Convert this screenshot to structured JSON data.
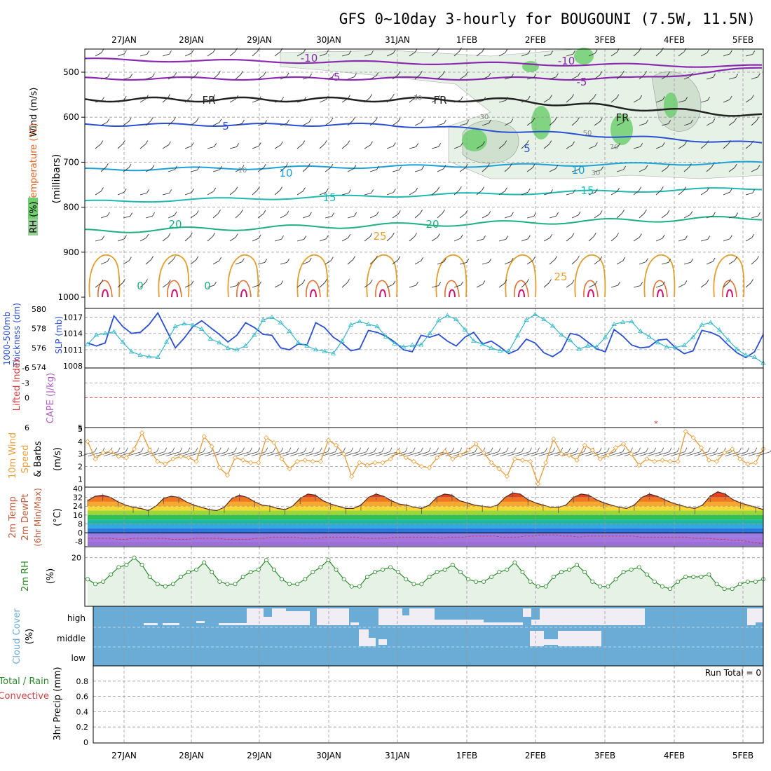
{
  "title": "GFS 0~10day 3-hourly for BOUGOUNI (7.5W, 11.5N)",
  "dates": [
    "27JAN",
    "28JAN",
    "29JAN",
    "30JAN",
    "31JAN",
    "1FEB",
    "2FEB",
    "3FEB",
    "4FEB",
    "5FEB"
  ],
  "colors": {
    "rh_green": "#6fcf6f",
    "rh_light": "#e6f2e6",
    "thickness": "#2a4fd0",
    "slp": "#36b8c8",
    "wind10": "#e8a040",
    "rh2m": "#2a8a2a",
    "cloud": "#6aacd6",
    "cape": "#b060c0",
    "li": "#d04040"
  },
  "chart_data": [
    {
      "type": "line",
      "name": "upper_air",
      "y_axis_label_parts": [
        "Wind (m/s)",
        "Temperature (°C)",
        "RH (%)",
        "(millibars)"
      ],
      "y_ticks": [
        500,
        600,
        700,
        800,
        900,
        1000
      ],
      "ylim": [
        1000,
        450
      ],
      "isotherm_labels": [
        "-10",
        "-5",
        "FR",
        "5",
        "10",
        "15",
        "20",
        "25",
        "0"
      ],
      "rh_labels": [
        "30",
        "50",
        "70",
        "10"
      ],
      "legend_title": "RH (%)"
    },
    {
      "type": "line",
      "name": "thickness_slp",
      "y_axis_label_parts": [
        "1000-500mb",
        "Thickness (dm)",
        "SLP (mb)"
      ],
      "left_ticks": [
        574,
        576,
        578,
        580
      ],
      "right_ticks": [
        1008,
        1011,
        1014,
        1017
      ],
      "left_ylim": [
        574,
        580
      ],
      "right_ylim": [
        1008,
        1018.5
      ],
      "thickness_dm": [
        576.5,
        576.2,
        576.5,
        579.3,
        578.2,
        577.5,
        577.6,
        578.4,
        579.6,
        577.8,
        576.0,
        577.0,
        578.2,
        578.8,
        578.1,
        577.4,
        576.6,
        577.3,
        578.6,
        578.1,
        577.4,
        577.3,
        576.0,
        575.8,
        576.4,
        576.3,
        578.6,
        578.1,
        577.1,
        576.5,
        575.7,
        575.9,
        577.8,
        577.6,
        577.2,
        576.6,
        575.8,
        575.6,
        577.3,
        577.1,
        577.4,
        576.7,
        576.2,
        577.1,
        577.6,
        576.4,
        576.7,
        576.1,
        575.4,
        575.8,
        576.9,
        576.5,
        575.5,
        575.1,
        575.7,
        577.5,
        577.3,
        576.6,
        575.9,
        575.6,
        577.9,
        577.2,
        576.3,
        576.0,
        576.1,
        576.8,
        576.9,
        576.0,
        575.4,
        575.7,
        577.8,
        577.6,
        577.2,
        576.3,
        575.5,
        575.0,
        575.6,
        577.4
      ],
      "slp_mb": [
        1012.0,
        1013.7,
        1014.0,
        1014.3,
        1012.4,
        1010.6,
        1010.0,
        1009.7,
        1009.6,
        1012.4,
        1015.3,
        1015.8,
        1015.5,
        1014.8,
        1013.0,
        1012.3,
        1011.3,
        1011.0,
        1011.7,
        1013.7,
        1016.5,
        1017.0,
        1016.0,
        1014.4,
        1012.3,
        1011.7,
        1011.0,
        1010.7,
        1010.3,
        1012.6,
        1015.6,
        1016.2,
        1015.7,
        1015.3,
        1013.4,
        1012.1,
        1011.5,
        1011.8,
        1011.9,
        1014.0,
        1016.4,
        1017.3,
        1016.6,
        1014.7,
        1012.6,
        1012.0,
        1011.3,
        1010.8,
        1010.7,
        1013.6,
        1016.5,
        1017.5,
        1016.6,
        1015.4,
        1013.7,
        1012.7,
        1011.1,
        1011.7,
        1011.5,
        1013.3,
        1015.7,
        1016.1,
        1016.2,
        1014.4,
        1013.4,
        1012.3,
        1011.5,
        1011.4,
        1011.8,
        1013.3,
        1015.6,
        1016.0,
        1014.6,
        1012.8,
        1011.1,
        1010.0,
        1009.6,
        1008.5
      ]
    },
    {
      "type": "line",
      "name": "stability",
      "y_axis_label_parts": [
        "Lifted Index",
        "CAPE (J/kg)"
      ],
      "li_ticks": [
        6,
        0,
        -3,
        -6
      ],
      "li_ylim": [
        6,
        -6
      ],
      "cape_ticks": [
        5
      ],
      "cape_values": [
        0
      ]
    },
    {
      "type": "line",
      "name": "wind10m",
      "y_axis_label_parts": [
        "10m Wind",
        "Speed",
        "& Barbs",
        "(m/s)"
      ],
      "y_ticks": [
        1,
        2,
        3,
        4,
        5
      ],
      "ylim": [
        0.4,
        5
      ],
      "speed_ms": [
        4.0,
        2.6,
        3.1,
        3.2,
        2.8,
        2.7,
        3.4,
        4.7,
        3.3,
        2.4,
        2.2,
        2.6,
        2.8,
        2.7,
        2.4,
        4.4,
        3.6,
        1.9,
        1.3,
        2.7,
        2.5,
        2.3,
        2.3,
        4.3,
        3.9,
        2.6,
        1.8,
        2.4,
        2.5,
        2.4,
        2.4,
        4.1,
        3.7,
        3.0,
        1.2,
        2.3,
        2.1,
        2.3,
        2.3,
        2.6,
        3.2,
        2.7,
        2.4,
        2.0,
        1.9,
        2.7,
        3.2,
        2.6,
        2.9,
        3.3,
        3.8,
        3.1,
        2.3,
        1.8,
        1.2,
        2.6,
        2.5,
        2.4,
        0.6,
        2.3,
        4.2,
        3.0,
        2.9,
        2.5,
        3.7,
        3.3,
        2.6,
        2.9,
        3.5,
        3.8,
        3.0,
        2.1,
        2.6,
        2.4,
        2.5,
        2.4,
        2.4,
        4.8,
        4.3,
        3.5,
        2.5,
        2.4,
        3.1,
        3.4,
        2.6,
        2.2,
        2.3,
        3.4
      ]
    },
    {
      "type": "area",
      "name": "temp2m",
      "y_axis_label_parts": [
        "2m Temp",
        "2m DewPt",
        "(6hr Min/Max)",
        "(°C)"
      ],
      "y_ticks": [
        -8,
        0,
        8,
        16,
        24,
        32,
        40
      ],
      "ylim": [
        -12,
        40
      ],
      "temp_c": [
        29,
        33,
        34,
        32,
        28,
        25,
        23,
        22,
        20,
        24,
        31,
        33,
        32,
        28,
        25,
        23,
        21,
        20,
        23,
        31,
        34,
        32,
        28,
        25,
        24,
        22,
        21,
        24,
        31,
        35,
        34,
        29,
        26,
        24,
        22,
        22,
        25,
        32,
        35,
        33,
        29,
        26,
        25,
        23,
        22,
        25,
        32,
        35,
        34,
        29,
        27,
        25,
        24,
        23,
        25,
        32,
        36,
        35,
        30,
        27,
        25,
        23,
        23,
        25,
        32,
        35,
        34,
        30,
        27,
        25,
        23,
        22,
        25,
        32,
        35,
        33,
        30,
        27,
        25,
        23,
        22,
        25,
        33,
        37,
        35,
        30,
        27,
        25,
        23,
        21
      ],
      "dewpoint_c": [
        -5,
        -5,
        -5,
        -5,
        -6,
        -6,
        -5,
        -5,
        -5,
        -5,
        -5,
        -6,
        -6,
        -6,
        -5,
        -5,
        -5,
        -5,
        -6,
        -6,
        -6,
        -6,
        -5,
        -5,
        -4,
        -4,
        -4,
        -4,
        -5,
        -5,
        -5,
        -4,
        -4,
        -4,
        -4,
        -4,
        -5,
        -5,
        -5,
        -5,
        -4,
        -4,
        -4,
        -4,
        -4,
        -4,
        -5,
        -4,
        -4,
        -4,
        -3,
        -3,
        -3,
        -3,
        -4,
        -4,
        -4,
        -3,
        -3,
        -2,
        -2,
        -2,
        -3,
        -3,
        -4,
        -3,
        -3,
        -3,
        -3,
        -3,
        -3,
        -3,
        -4,
        -4,
        -4,
        -4,
        -4,
        -4,
        -4,
        -5,
        -5,
        -5,
        -6,
        -6,
        -7,
        -7,
        -8,
        -9,
        -10
      ]
    },
    {
      "type": "line",
      "name": "rh2m",
      "y_axis_label_parts": [
        "2m RH",
        "(%)"
      ],
      "y_ticks": [
        20
      ],
      "ylim": [
        0,
        24
      ],
      "rh_pct": [
        11,
        9,
        10,
        13,
        16,
        17,
        20,
        17,
        12,
        9,
        8,
        9,
        12,
        14,
        15,
        18,
        14,
        10,
        9,
        9,
        12,
        14,
        15,
        19,
        15,
        11,
        9,
        9,
        11,
        14,
        16,
        19,
        15,
        11,
        8,
        8,
        12,
        14,
        15,
        16,
        14,
        11,
        9,
        9,
        12,
        14,
        15,
        17,
        14,
        11,
        10,
        10,
        12,
        14,
        15,
        18,
        14,
        10,
        8,
        8,
        12,
        14,
        15,
        17,
        14,
        10,
        8,
        8,
        11,
        14,
        15,
        16,
        13,
        10,
        8,
        7,
        10,
        12,
        12,
        12,
        13,
        9,
        7,
        7,
        9,
        10,
        10,
        11
      ]
    },
    {
      "type": "heatmap",
      "name": "cloud_cover",
      "y_axis_label_parts": [
        "Cloud Cover",
        "(%)"
      ],
      "rows": [
        "high",
        "middle",
        "low"
      ]
    },
    {
      "type": "bar",
      "name": "precip",
      "y_axis_label_parts": [
        "Total / Rain",
        "Convective",
        "3hr Precip (mm)"
      ],
      "y_ticks": [
        0,
        0.2,
        0.4,
        0.6,
        0.8
      ],
      "ylim": [
        0,
        1
      ],
      "run_total_label": "Run Total = 0",
      "values": [
        0
      ]
    }
  ]
}
